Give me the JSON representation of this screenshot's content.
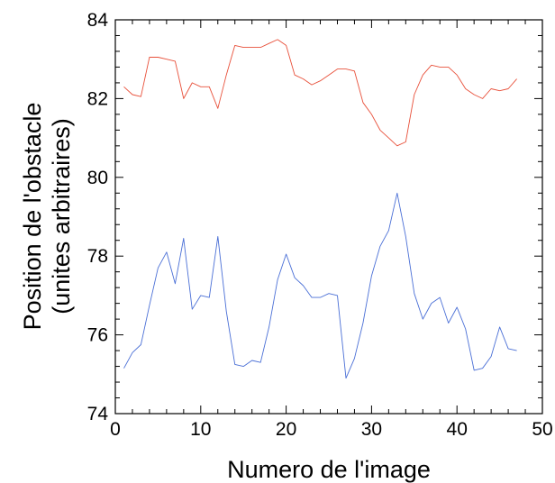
{
  "chart_data": {
    "type": "line",
    "title": "",
    "xlabel": "Numero de l'image",
    "ylabel_lines": [
      "Position de l'obstacle",
      "(unites arbitraires)"
    ],
    "xlim": [
      0,
      50
    ],
    "ylim": [
      74,
      84
    ],
    "xticks": [
      0,
      10,
      20,
      30,
      40,
      50
    ],
    "yticks": [
      74,
      76,
      78,
      80,
      82,
      84
    ],
    "grid": false,
    "x": [
      1,
      2,
      3,
      4,
      5,
      6,
      7,
      8,
      9,
      10,
      11,
      12,
      13,
      14,
      15,
      16,
      17,
      18,
      19,
      20,
      21,
      22,
      23,
      24,
      25,
      26,
      27,
      28,
      29,
      30,
      31,
      32,
      33,
      34,
      35,
      36,
      37,
      38,
      39,
      40,
      41,
      42,
      43,
      44,
      45,
      46,
      47
    ],
    "series": [
      {
        "color": "#e8503a",
        "values": [
          82.3,
          82.1,
          82.05,
          83.05,
          83.05,
          83.0,
          82.95,
          82.0,
          82.4,
          82.3,
          82.3,
          81.75,
          82.6,
          83.35,
          83.3,
          83.3,
          83.3,
          83.4,
          83.5,
          83.35,
          82.6,
          82.5,
          82.35,
          82.45,
          82.6,
          82.75,
          82.75,
          82.7,
          81.9,
          81.6,
          81.2,
          81.0,
          80.8,
          80.9,
          82.1,
          82.6,
          82.85,
          82.8,
          82.8,
          82.6,
          82.25,
          82.1,
          82.0,
          82.25,
          82.2,
          82.25,
          82.5
        ]
      },
      {
        "color": "#4a6fd6",
        "values": [
          75.15,
          75.55,
          75.75,
          76.75,
          77.7,
          78.1,
          77.3,
          78.45,
          76.65,
          77.0,
          76.95,
          78.5,
          76.6,
          75.25,
          75.2,
          75.35,
          75.3,
          76.2,
          77.4,
          78.05,
          77.45,
          77.25,
          76.95,
          76.95,
          77.05,
          77.0,
          74.9,
          75.4,
          76.3,
          77.5,
          78.25,
          78.65,
          79.6,
          78.5,
          77.05,
          76.4,
          76.8,
          76.95,
          76.3,
          76.7,
          76.15,
          75.1,
          75.15,
          75.45,
          76.2,
          75.65,
          75.6
        ]
      }
    ]
  }
}
